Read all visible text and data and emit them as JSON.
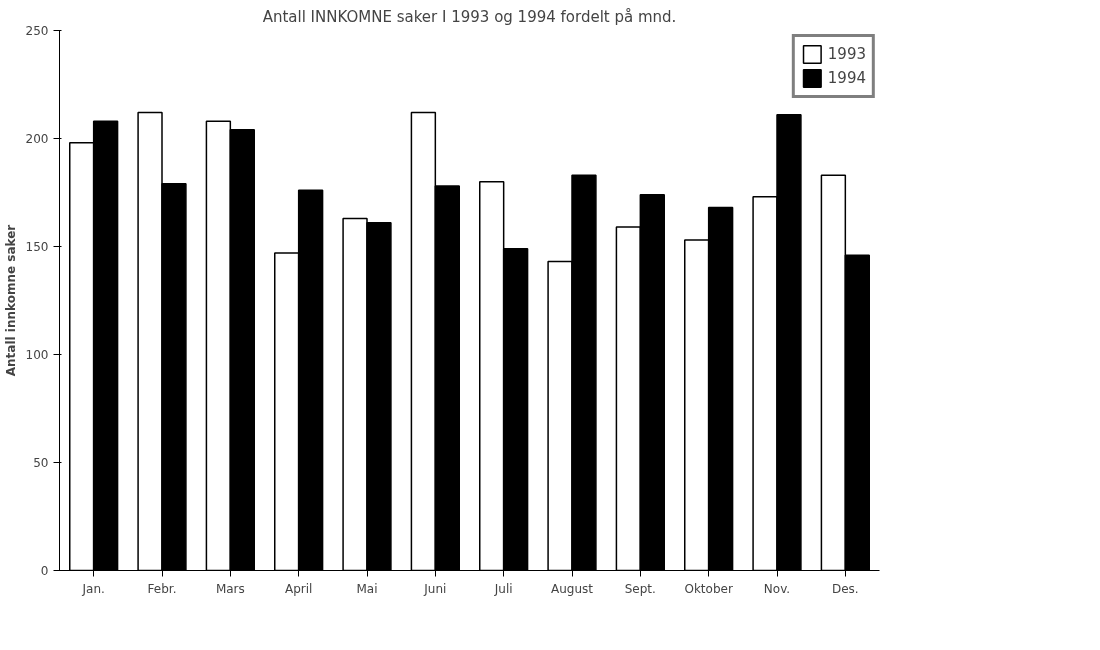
{
  "chart_data": {
    "type": "bar",
    "title": "Antall INNKOMNE saker I 1993 og 1994 fordelt på mnd.",
    "ylabel": "Antall innkomne saker",
    "categories": [
      "Jan.",
      "Febr.",
      "Mars",
      "April",
      "Mai",
      "Juni",
      "Juli",
      "August",
      "Sept.",
      "Oktober",
      "Nov.",
      "Des."
    ],
    "series": [
      {
        "name": "1993",
        "color": "#ffffff",
        "values": [
          198,
          212,
          208,
          147,
          163,
          212,
          180,
          143,
          159,
          153,
          173,
          183
        ]
      },
      {
        "name": "1994",
        "color": "#000000",
        "values": [
          208,
          179,
          204,
          176,
          161,
          178,
          149,
          183,
          174,
          168,
          211,
          146
        ]
      }
    ],
    "ylim": [
      0,
      250
    ],
    "yticks": [
      0,
      50,
      100,
      150,
      200,
      250
    ],
    "grid": false,
    "legend": "top right"
  }
}
